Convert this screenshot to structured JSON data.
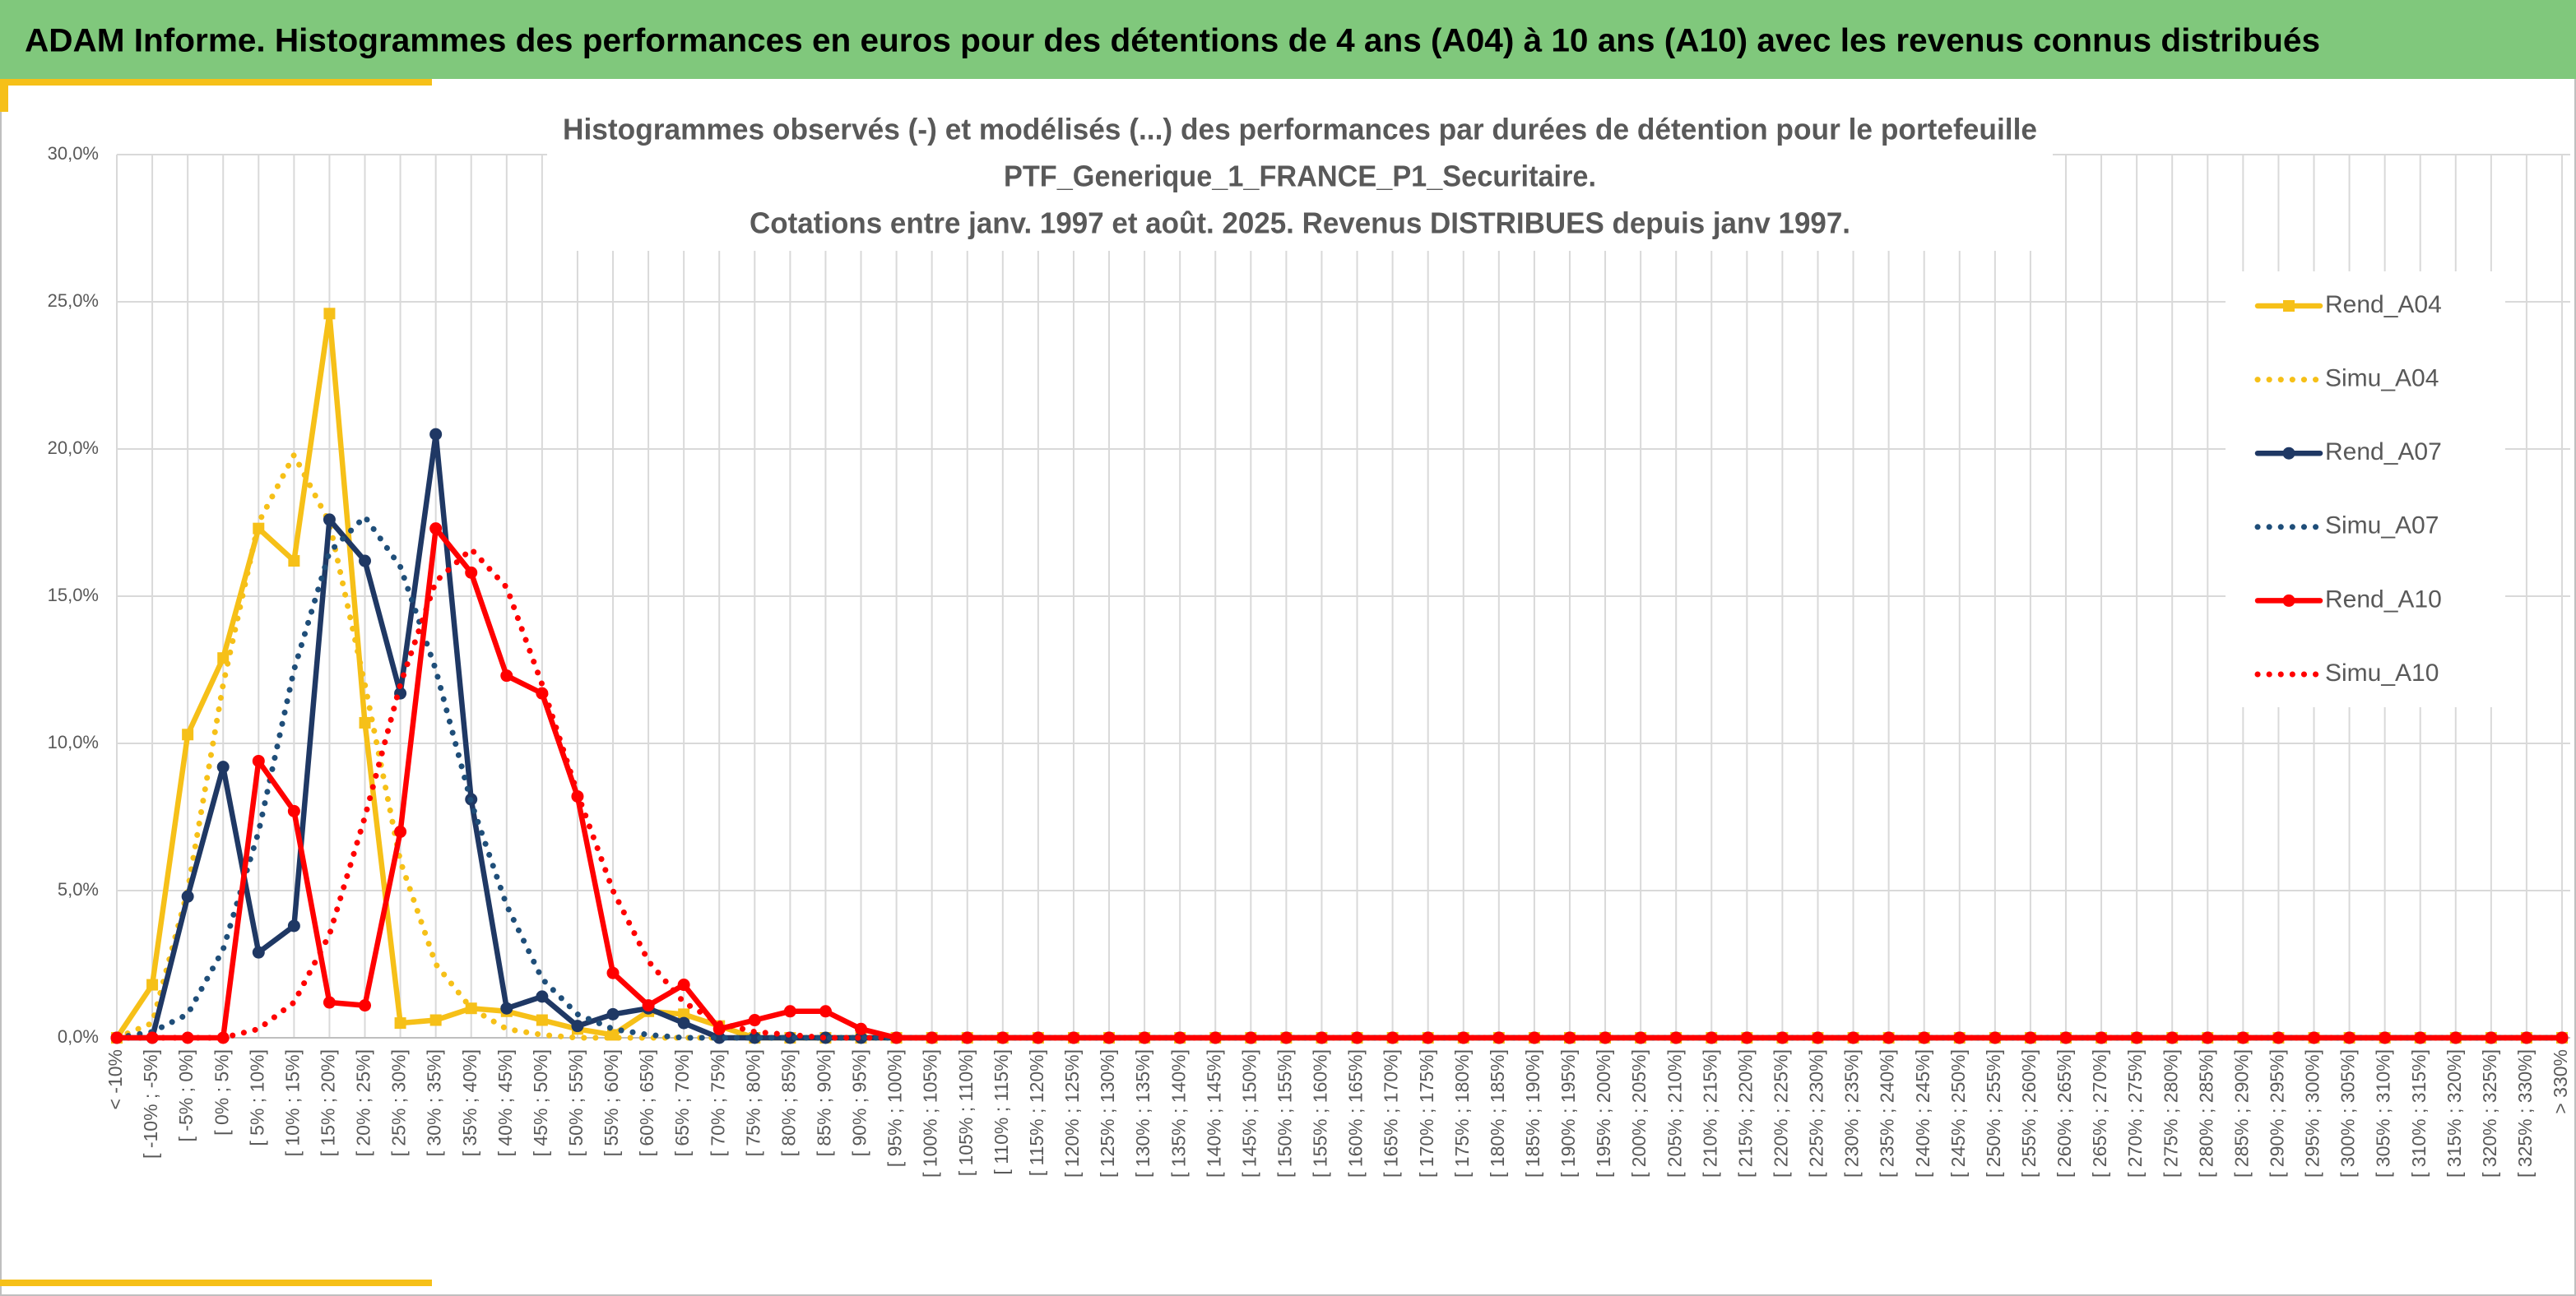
{
  "header_title": "ADAM Informe. Histogrammes des performances en euros pour des détentions de 4 ans (A04) à 10 ans (A10) avec les revenus connus distribués",
  "chart_data": {
    "type": "line",
    "title": [
      "Histogrammes observés (-) et modélisés (...) des performances par durées de détention pour le portefeuille",
      "PTF_Generique_1_FRANCE_P1_Securitaire.",
      "Cotations entre janv. 1997 et août. 2025. Revenus DISTRIBUES depuis janv 1997."
    ],
    "categories": [
      "< -10%",
      "[ -10% ; -5%]",
      "[ -5% ; 0%]",
      "[ 0% ; 5%]",
      "[ 5% ; 10%]",
      "[ 10% ; 15%]",
      "[ 15% ; 20%]",
      "[ 20% ; 25%]",
      "[ 25% ; 30%]",
      "[ 30% ; 35%]",
      "[ 35% ; 40%]",
      "[ 40% ; 45%]",
      "[ 45% ; 50%]",
      "[ 50% ; 55%]",
      "[ 55% ; 60%]",
      "[ 60% ; 65%]",
      "[ 65% ; 70%]",
      "[ 70% ; 75%]",
      "[ 75% ; 80%]",
      "[ 80% ; 85%]",
      "[ 85% ; 90%]",
      "[ 90% ; 95%]",
      "[ 95% ; 100%]",
      "[ 100% ; 105%]",
      "[ 105% ; 110%]",
      "[ 110% ; 115%]",
      "[ 115% ; 120%]",
      "[ 120% ; 125%]",
      "[ 125% ; 130%]",
      "[ 130% ; 135%]",
      "[ 135% ; 140%]",
      "[ 140% ; 145%]",
      "[ 145% ; 150%]",
      "[ 150% ; 155%]",
      "[ 155% ; 160%]",
      "[ 160% ; 165%]",
      "[ 165% ; 170%]",
      "[ 170% ; 175%]",
      "[ 175% ; 180%]",
      "[ 180% ; 185%]",
      "[ 185% ; 190%]",
      "[ 190% ; 195%]",
      "[ 195% ; 200%]",
      "[ 200% ; 205%]",
      "[ 205% ; 210%]",
      "[ 210% ; 215%]",
      "[ 215% ; 220%]",
      "[ 220% ; 225%]",
      "[ 225% ; 230%]",
      "[ 230% ; 235%]",
      "[ 235% ; 240%]",
      "[ 240% ; 245%]",
      "[ 245% ; 250%]",
      "[ 250% ; 255%]",
      "[ 255% ; 260%]",
      "[ 260% ; 265%]",
      "[ 265% ; 270%]",
      "[ 270% ; 275%]",
      "[ 275% ; 280%]",
      "[ 280% ; 285%]",
      "[ 285% ; 290%]",
      "[ 290% ; 295%]",
      "[ 295% ; 300%]",
      "[ 300% ; 305%]",
      "[ 305% ; 310%]",
      "[ 310% ; 315%]",
      "[ 315% ; 320%]",
      "[ 320% ; 325%]",
      "[ 325% ; 330%]",
      "> 330%"
    ],
    "series": [
      {
        "name": "Rend_A04",
        "color": "#f6c018",
        "style": "solid",
        "marker": "square",
        "values": [
          0,
          1.8,
          10.3,
          12.9,
          17.3,
          16.2,
          24.6,
          10.7,
          0.5,
          0.6,
          1.0,
          0.9,
          0.6,
          0.3,
          0.1,
          0.9,
          0.8,
          0.4,
          0,
          0,
          0,
          0,
          0,
          0,
          0,
          0,
          0,
          0,
          0,
          0,
          0,
          0,
          0,
          0,
          0,
          0,
          0,
          0,
          0,
          0,
          0,
          0,
          0,
          0,
          0,
          0,
          0,
          0,
          0,
          0,
          0,
          0,
          0,
          0,
          0,
          0,
          0,
          0,
          0,
          0,
          0,
          0,
          0,
          0,
          0,
          0,
          0,
          0,
          0,
          0
        ]
      },
      {
        "name": "Simu_A04",
        "color": "#f6c018",
        "style": "dotted",
        "values": [
          0,
          0.5,
          5,
          12,
          17.5,
          19.8,
          17.5,
          12,
          6,
          2.5,
          1,
          0.3,
          0.1,
          0,
          0,
          0,
          0,
          0,
          0,
          0,
          0,
          0,
          0,
          0,
          0,
          0,
          0,
          0,
          0,
          0,
          0,
          0,
          0,
          0,
          0,
          0,
          0,
          0,
          0,
          0,
          0,
          0,
          0,
          0,
          0,
          0,
          0,
          0,
          0,
          0,
          0,
          0,
          0,
          0,
          0,
          0,
          0,
          0,
          0,
          0,
          0,
          0,
          0,
          0,
          0,
          0,
          0,
          0,
          0,
          0
        ]
      },
      {
        "name": "Rend_A07",
        "color": "#1f3864",
        "style": "solid",
        "marker": "circle",
        "values": [
          0,
          0,
          4.8,
          9.2,
          2.9,
          3.8,
          17.6,
          16.2,
          11.7,
          20.5,
          8.1,
          1.0,
          1.4,
          0.4,
          0.8,
          1.0,
          0.5,
          0,
          0,
          0,
          0,
          0,
          0,
          0,
          0,
          0,
          0,
          0,
          0,
          0,
          0,
          0,
          0,
          0,
          0,
          0,
          0,
          0,
          0,
          0,
          0,
          0,
          0,
          0,
          0,
          0,
          0,
          0,
          0,
          0,
          0,
          0,
          0,
          0,
          0,
          0,
          0,
          0,
          0,
          0,
          0,
          0,
          0,
          0,
          0,
          0,
          0,
          0,
          0,
          0
        ]
      },
      {
        "name": "Simu_A07",
        "color": "#1f4e79",
        "style": "dotted",
        "values": [
          0,
          0.2,
          0.8,
          3,
          7,
          12.5,
          16.5,
          17.7,
          16,
          12.5,
          8,
          4.5,
          2,
          0.8,
          0.3,
          0.1,
          0,
          0,
          0,
          0,
          0,
          0,
          0,
          0,
          0,
          0,
          0,
          0,
          0,
          0,
          0,
          0,
          0,
          0,
          0,
          0,
          0,
          0,
          0,
          0,
          0,
          0,
          0,
          0,
          0,
          0,
          0,
          0,
          0,
          0,
          0,
          0,
          0,
          0,
          0,
          0,
          0,
          0,
          0,
          0,
          0,
          0,
          0,
          0,
          0,
          0,
          0,
          0,
          0,
          0
        ]
      },
      {
        "name": "Rend_A10",
        "color": "#ff0000",
        "style": "solid",
        "marker": "circle",
        "values": [
          0,
          0,
          0,
          0,
          9.4,
          7.7,
          1.2,
          1.1,
          7.0,
          17.3,
          15.8,
          12.3,
          11.7,
          8.2,
          2.2,
          1.1,
          1.8,
          0.3,
          0.6,
          0.9,
          0.9,
          0.3,
          0,
          0,
          0,
          0,
          0,
          0,
          0,
          0,
          0,
          0,
          0,
          0,
          0,
          0,
          0,
          0,
          0,
          0,
          0,
          0,
          0,
          0,
          0,
          0,
          0,
          0,
          0,
          0,
          0,
          0,
          0,
          0,
          0,
          0,
          0,
          0,
          0,
          0,
          0,
          0,
          0,
          0,
          0,
          0,
          0,
          0,
          0,
          0
        ]
      },
      {
        "name": "Simu_A10",
        "color": "#ff0000",
        "style": "dotted",
        "values": [
          0,
          0,
          0,
          0,
          0.3,
          1.2,
          3.5,
          7.5,
          12,
          15.5,
          16.6,
          15.3,
          12,
          8.3,
          5,
          2.6,
          1.2,
          0.5,
          0.2,
          0.1,
          0,
          0,
          0,
          0,
          0,
          0,
          0,
          0,
          0,
          0,
          0,
          0,
          0,
          0,
          0,
          0,
          0,
          0,
          0,
          0,
          0,
          0,
          0,
          0,
          0,
          0,
          0,
          0,
          0,
          0,
          0,
          0,
          0,
          0,
          0,
          0,
          0,
          0,
          0,
          0,
          0,
          0,
          0,
          0,
          0,
          0,
          0,
          0,
          0,
          0
        ]
      }
    ],
    "ylim": [
      0,
      30
    ],
    "yticks": [
      {
        "value": 0,
        "label": "0,0%"
      },
      {
        "value": 5,
        "label": "5,0%"
      },
      {
        "value": 10,
        "label": "10,0%"
      },
      {
        "value": 15,
        "label": "15,0%"
      },
      {
        "value": 20,
        "label": "20,0%"
      },
      {
        "value": 25,
        "label": "25,0%"
      },
      {
        "value": 30,
        "label": "30,0%"
      }
    ],
    "grid": true,
    "legend": "right"
  }
}
